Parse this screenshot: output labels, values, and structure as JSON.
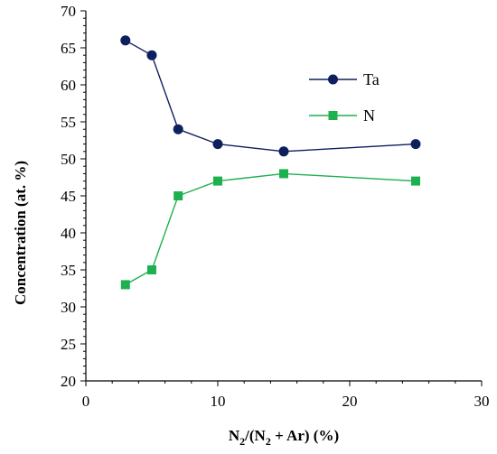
{
  "chart_data": {
    "type": "line",
    "title": "",
    "xlabel": {
      "n": "N",
      "sub": "2",
      "open": "/(N",
      "sub2": "2",
      "rest": " + Ar) (%)"
    },
    "ylabel": "Concentration (at. %)",
    "xlim": [
      0,
      30
    ],
    "ylim": [
      20,
      70
    ],
    "x_ticks": [
      "0",
      "10",
      "20",
      "30"
    ],
    "y_ticks": [
      "20",
      "25",
      "30",
      "35",
      "40",
      "45",
      "50",
      "55",
      "60",
      "65",
      "70"
    ],
    "grid": false,
    "legend_position": "top-right",
    "series": [
      {
        "name": "Ta",
        "color": "#0d1f5c",
        "marker": "circle",
        "x": [
          3,
          5,
          7,
          10,
          15,
          25
        ],
        "values": [
          66,
          64,
          54,
          52,
          51,
          52
        ]
      },
      {
        "name": "N",
        "color": "#1db04e",
        "marker": "square",
        "x": [
          3,
          5,
          7,
          10,
          15,
          25
        ],
        "values": [
          33,
          35,
          45,
          47,
          48,
          47
        ]
      }
    ]
  }
}
